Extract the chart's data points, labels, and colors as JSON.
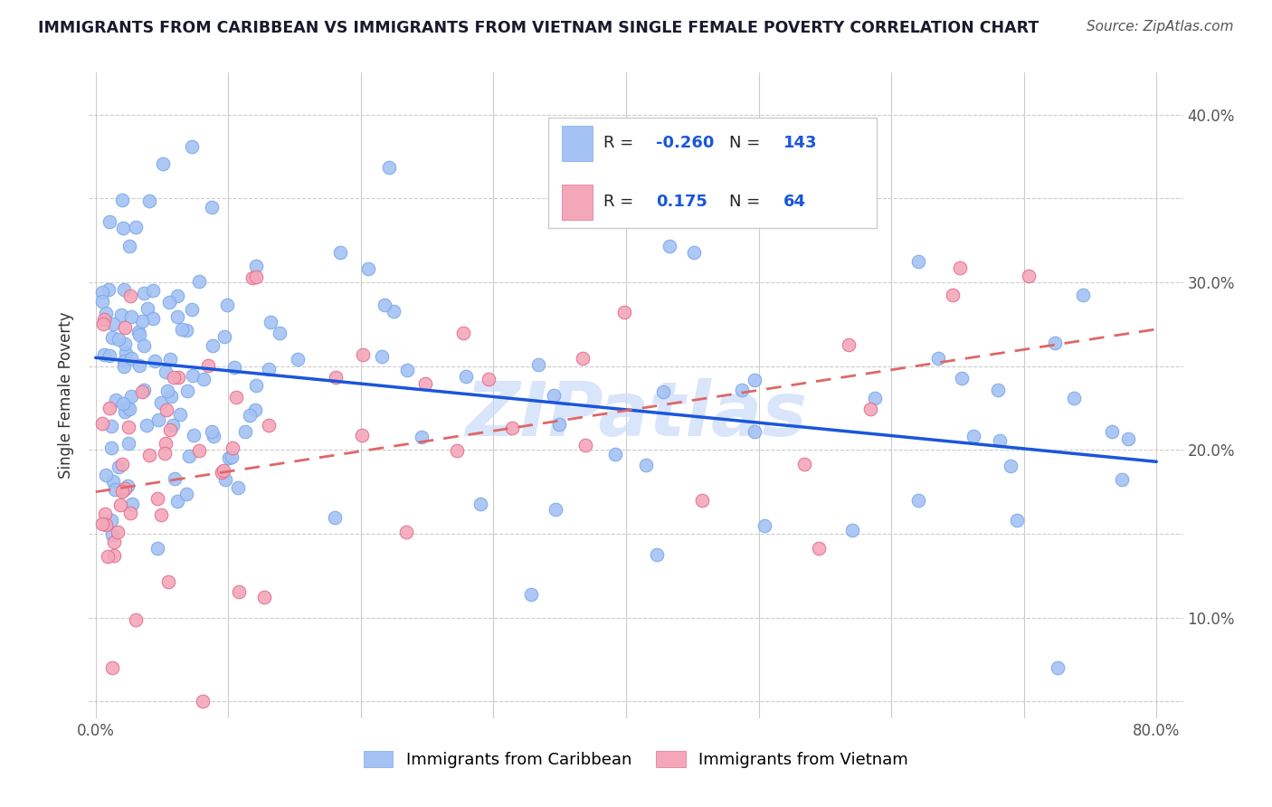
{
  "title": "IMMIGRANTS FROM CARIBBEAN VS IMMIGRANTS FROM VIETNAM SINGLE FEMALE POVERTY CORRELATION CHART",
  "source_text": "Source: ZipAtlas.com",
  "ylabel": "Single Female Poverty",
  "caribbean_R": -0.26,
  "caribbean_N": 143,
  "vietnam_R": 0.175,
  "vietnam_N": 64,
  "blue_color": "#a4c2f4",
  "pink_color": "#f4a7b9",
  "blue_line_color": "#1a56db",
  "pink_line_color": "#e06666",
  "watermark_text": "ZIPatlas",
  "watermark_color": "#c9daf8",
  "legend_label_caribbean": "Immigrants from Caribbean",
  "legend_label_vietnam": "Immigrants from Vietnam",
  "xlim": [
    -0.005,
    0.82
  ],
  "ylim": [
    0.04,
    0.425
  ],
  "x_ticks": [
    0.0,
    0.1,
    0.2,
    0.3,
    0.4,
    0.5,
    0.6,
    0.7,
    0.8
  ],
  "x_tick_labels": [
    "0.0%",
    "",
    "",
    "",
    "",
    "",
    "",
    "",
    "80.0%"
  ],
  "y_ticks_right": [
    0.1,
    0.2,
    0.3,
    0.4
  ],
  "y_tick_labels_right": [
    "10.0%",
    "20.0%",
    "30.0%",
    "40.0%"
  ],
  "carib_line_x0": 0.0,
  "carib_line_x1": 0.8,
  "carib_line_y0": 0.255,
  "carib_line_y1": 0.193,
  "viet_line_x0": 0.0,
  "viet_line_x1": 0.8,
  "viet_line_y0": 0.175,
  "viet_line_y1": 0.272
}
